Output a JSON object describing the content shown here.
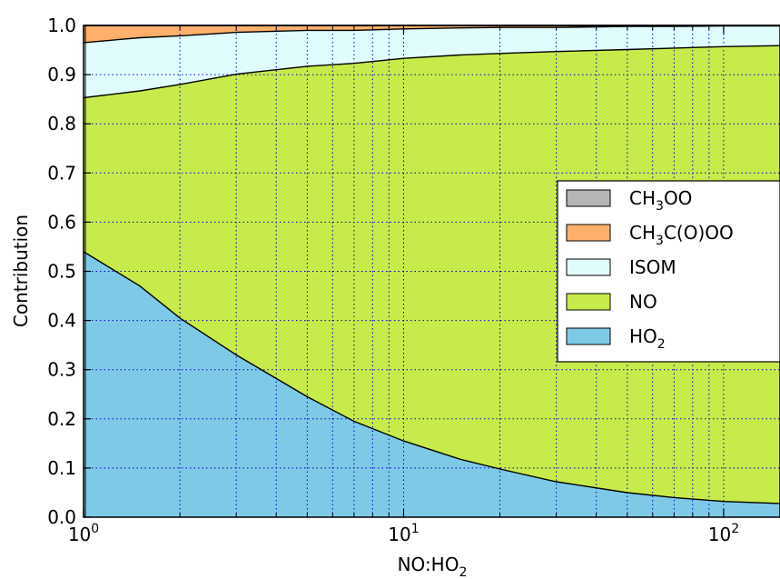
{
  "chart_data": {
    "type": "area",
    "stacked": true,
    "xscale": "log",
    "xlabel": "NO:HO",
    "xlabel_sub": "2",
    "ylabel": "Contribution",
    "xlim": [
      1,
      150
    ],
    "ylim": [
      0,
      1.0
    ],
    "grid": true,
    "legend_position": "center-right",
    "x_ticks": [
      1,
      10,
      100
    ],
    "x_tick_labels": [
      {
        "base": "10",
        "exp": "0"
      },
      {
        "base": "10",
        "exp": "1"
      },
      {
        "base": "10",
        "exp": "2"
      }
    ],
    "y_ticks": [
      0.0,
      0.1,
      0.2,
      0.3,
      0.4,
      0.5,
      0.6,
      0.7,
      0.8,
      0.9,
      1.0
    ],
    "y_tick_labels": [
      "0.0",
      "0.1",
      "0.2",
      "0.3",
      "0.4",
      "0.5",
      "0.6",
      "0.7",
      "0.8",
      "0.9",
      "1.0"
    ],
    "x": [
      1,
      1.5,
      2,
      3,
      5,
      7,
      10,
      15,
      20,
      30,
      50,
      70,
      100,
      150
    ],
    "series": [
      {
        "key": "HO2",
        "name": "HO",
        "name_sub": "2",
        "color": "#7ecae6",
        "values": [
          0.54,
          0.47,
          0.405,
          0.33,
          0.245,
          0.195,
          0.155,
          0.118,
          0.098,
          0.072,
          0.05,
          0.04,
          0.032,
          0.028
        ]
      },
      {
        "key": "NO",
        "name": "NO",
        "color": "#c6eb4a",
        "values": [
          0.313,
          0.397,
          0.475,
          0.571,
          0.672,
          0.728,
          0.778,
          0.822,
          0.845,
          0.875,
          0.901,
          0.914,
          0.925,
          0.931
        ]
      },
      {
        "key": "ISOM",
        "name": "ISOM",
        "color": "#e0fcfd",
        "values": [
          0.112,
          0.108,
          0.099,
          0.085,
          0.073,
          0.067,
          0.06,
          0.055,
          0.053,
          0.049,
          0.047,
          0.044,
          0.042,
          0.04
        ]
      },
      {
        "key": "CH3COOO",
        "name": "CH",
        "name_sub": "3",
        "name_suffix": "C(O)OO",
        "color": "#fdb06b",
        "values": [
          0.035,
          0.025,
          0.021,
          0.014,
          0.01,
          0.01,
          0.007,
          0.005,
          0.004,
          0.004,
          0.002,
          0.002,
          0.001,
          0.001
        ]
      },
      {
        "key": "CH3OO",
        "name": "CH",
        "name_sub": "3",
        "name_suffix": "OO",
        "color": "#b5b5b5",
        "values": [
          0.0,
          0.0,
          0.0,
          0.0,
          0.0,
          0.0,
          0.0,
          0.0,
          0.0,
          0.0,
          0.0,
          0.0,
          0.0,
          0.0
        ]
      }
    ],
    "legend_order": [
      "CH3OO",
      "CH3COOO",
      "ISOM",
      "NO",
      "HO2"
    ]
  }
}
